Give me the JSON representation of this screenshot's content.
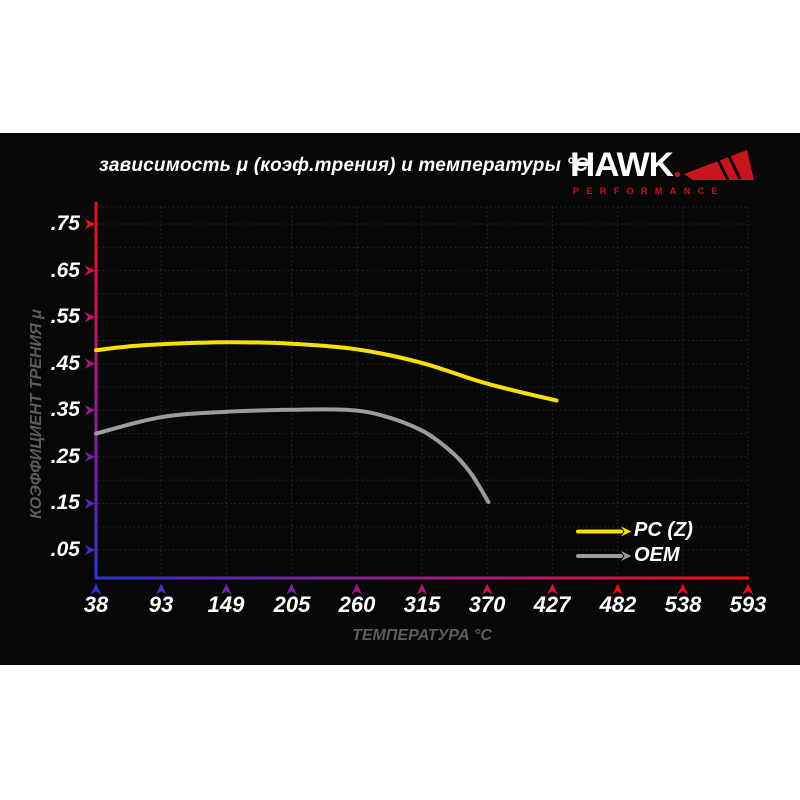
{
  "header": {
    "title": "зависимость μ (коэф.трения) и температуры °C",
    "logo": {
      "brand": "HAWK",
      "sub": "PERFORMANCE",
      "accent": "#c8151d"
    }
  },
  "chart_data": {
    "type": "line",
    "title": "зависимость μ (коэф.трения) и температуры °C",
    "xlabel": "ТЕМПЕРАТУРА °C",
    "ylabel": "КОЭФФИЦИЕНТ ТРЕНИЯ μ",
    "xlim": [
      38,
      593
    ],
    "ylim": [
      0,
      0.8
    ],
    "grid": "dotted",
    "grid_color": "#2b2b2b",
    "background": "#070707",
    "legend_position": "lower-right",
    "axis_gradient": {
      "y_top": "#e81212",
      "y_bottom": "#3133cd",
      "x_left": "#3133cd",
      "x_right": "#ee0d0d"
    },
    "x_ticks": [
      {
        "label": "38",
        "value": 38,
        "color": "#3233cc"
      },
      {
        "label": "93",
        "value": 93,
        "color": "#4a2dbd"
      },
      {
        "label": "149",
        "value": 149,
        "color": "#632aae"
      },
      {
        "label": "205",
        "value": 205,
        "color": "#7c249d"
      },
      {
        "label": "260",
        "value": 260,
        "color": "#951d89"
      },
      {
        "label": "315",
        "value": 315,
        "color": "#ad1971"
      },
      {
        "label": "370",
        "value": 370,
        "color": "#c31456"
      },
      {
        "label": "427",
        "value": 427,
        "color": "#d61037"
      },
      {
        "label": "482",
        "value": 482,
        "color": "#e40e1f"
      },
      {
        "label": "538",
        "value": 538,
        "color": "#ed0d12"
      },
      {
        "label": "593",
        "value": 593,
        "color": "#f10d0d"
      }
    ],
    "y_ticks": [
      {
        "label": ".75",
        "value": 0.75,
        "color": "#e41523"
      },
      {
        "label": ".65",
        "value": 0.65,
        "color": "#d31549"
      },
      {
        "label": ".55",
        "value": 0.55,
        "color": "#c3156b"
      },
      {
        "label": ".45",
        "value": 0.45,
        "color": "#ad1884"
      },
      {
        "label": ".35",
        "value": 0.35,
        "color": "#941d9a"
      },
      {
        "label": ".25",
        "value": 0.25,
        "color": "#7524ac"
      },
      {
        "label": ".15",
        "value": 0.15,
        "color": "#5429bc"
      },
      {
        "label": ".05",
        "value": 0.05,
        "color": "#3a2fc9"
      }
    ],
    "series": [
      {
        "name": "PC (Z)",
        "color": "#f5e000",
        "points": [
          [
            38,
            0.479
          ],
          [
            65,
            0.487
          ],
          [
            93,
            0.492
          ],
          [
            149,
            0.496
          ],
          [
            205,
            0.493
          ],
          [
            260,
            0.481
          ],
          [
            315,
            0.452
          ],
          [
            370,
            0.408
          ],
          [
            430,
            0.371
          ]
        ]
      },
      {
        "name": "OEM",
        "color": "#9c9c9c",
        "points": [
          [
            38,
            0.3
          ],
          [
            93,
            0.335
          ],
          [
            149,
            0.347
          ],
          [
            205,
            0.351
          ],
          [
            250,
            0.351
          ],
          [
            280,
            0.34
          ],
          [
            315,
            0.307
          ],
          [
            340,
            0.262
          ],
          [
            357,
            0.215
          ],
          [
            372,
            0.153
          ]
        ]
      }
    ]
  }
}
